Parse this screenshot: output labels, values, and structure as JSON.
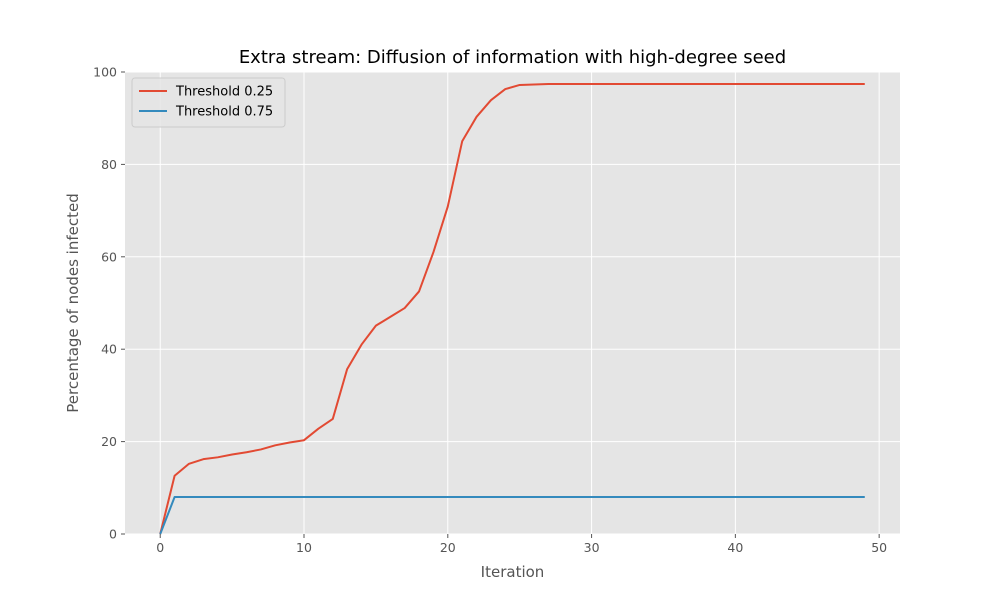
{
  "chart_data": {
    "type": "line",
    "title": "Extra stream: Diffusion of information with high-degree seed",
    "xlabel": "Iteration",
    "ylabel": "Percentage of nodes infected",
    "xlim": [
      -2.45,
      51.45
    ],
    "ylim": [
      0,
      100
    ],
    "xticks": [
      0,
      10,
      20,
      30,
      40,
      50
    ],
    "yticks": [
      0,
      20,
      40,
      60,
      80,
      100
    ],
    "grid": true,
    "legend_position": "top-left",
    "x": [
      0,
      1,
      2,
      3,
      4,
      5,
      6,
      7,
      8,
      9,
      10,
      11,
      12,
      13,
      14,
      15,
      16,
      17,
      18,
      19,
      20,
      21,
      22,
      23,
      24,
      25,
      26,
      27,
      28,
      29,
      30,
      31,
      32,
      33,
      34,
      35,
      36,
      37,
      38,
      39,
      40,
      41,
      42,
      43,
      44,
      45,
      46,
      47,
      48,
      49
    ],
    "series": [
      {
        "name": "Threshold 0.25",
        "color": "#E24A33",
        "values": [
          0,
          12.6,
          15.2,
          16.2,
          16.6,
          17.2,
          17.7,
          18.3,
          19.2,
          19.8,
          20.3,
          22.8,
          24.9,
          35.7,
          41.0,
          45.1,
          47.0,
          48.9,
          52.5,
          61.0,
          70.9,
          85.0,
          90.3,
          93.9,
          96.3,
          97.2,
          97.3,
          97.4,
          97.4,
          97.4,
          97.4,
          97.4,
          97.4,
          97.4,
          97.4,
          97.4,
          97.4,
          97.4,
          97.4,
          97.4,
          97.4,
          97.4,
          97.4,
          97.4,
          97.4,
          97.4,
          97.4,
          97.4,
          97.4,
          97.4
        ]
      },
      {
        "name": "Threshold 0.75",
        "color": "#348ABD",
        "values": [
          0,
          8.0,
          8.0,
          8.0,
          8.0,
          8.0,
          8.0,
          8.0,
          8.0,
          8.0,
          8.0,
          8.0,
          8.0,
          8.0,
          8.0,
          8.0,
          8.0,
          8.0,
          8.0,
          8.0,
          8.0,
          8.0,
          8.0,
          8.0,
          8.0,
          8.0,
          8.0,
          8.0,
          8.0,
          8.0,
          8.0,
          8.0,
          8.0,
          8.0,
          8.0,
          8.0,
          8.0,
          8.0,
          8.0,
          8.0,
          8.0,
          8.0,
          8.0,
          8.0,
          8.0,
          8.0,
          8.0,
          8.0,
          8.0,
          8.0
        ]
      }
    ]
  }
}
